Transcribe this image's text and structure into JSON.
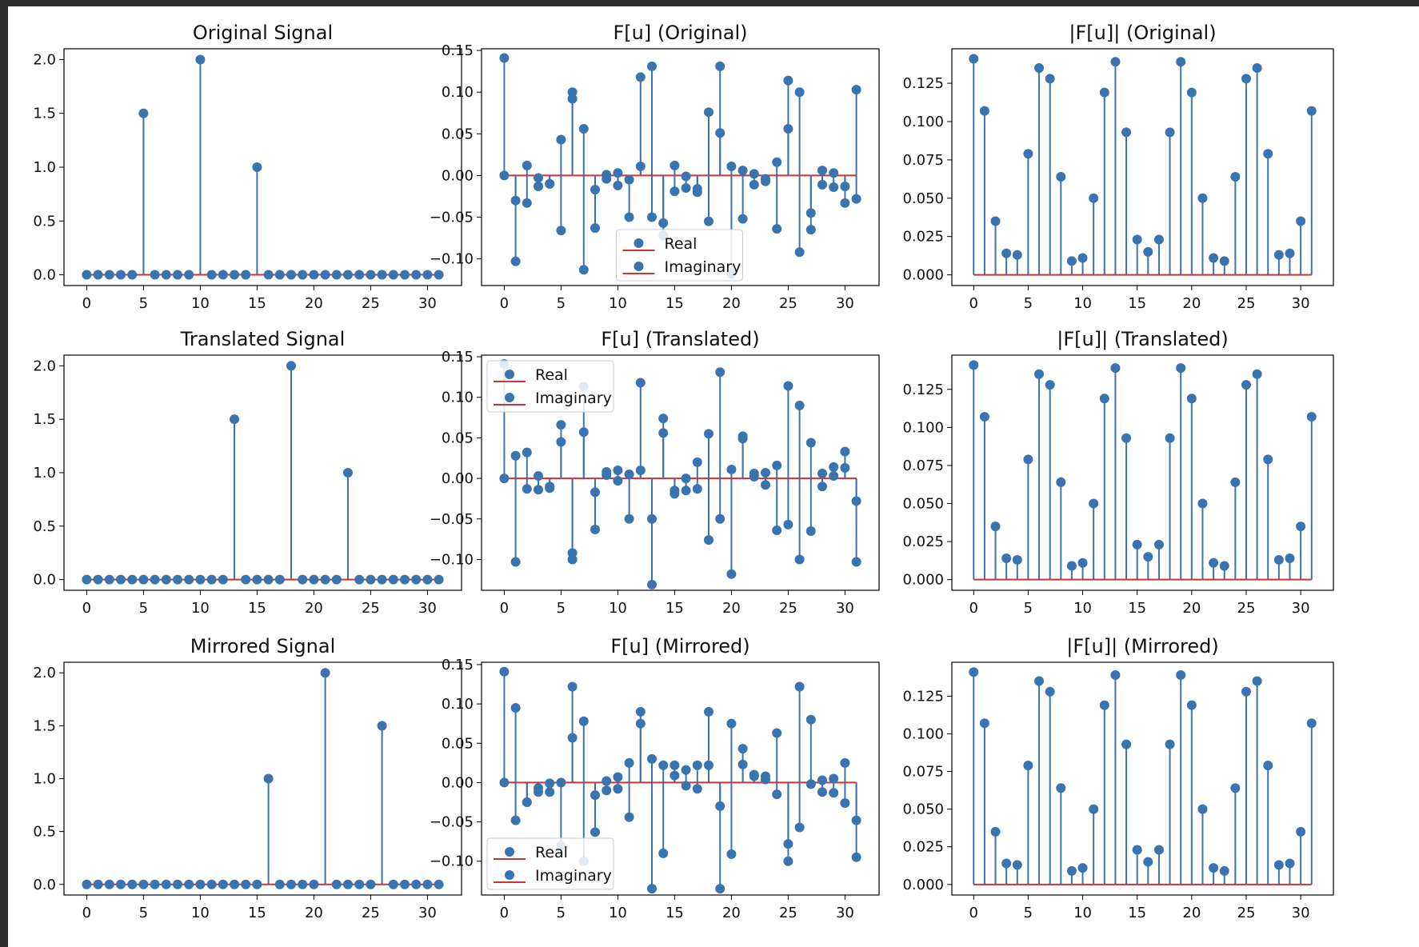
{
  "colors": {
    "stem": "#3a74b0",
    "baseline": "#cc3333",
    "marker": "#3a74b0",
    "axis": "#000000"
  },
  "chart_data": [
    {
      "type": "stem",
      "title": "Original Signal",
      "xlim": [
        -2,
        33
      ],
      "ylim": [
        -0.1,
        2.1
      ],
      "xticks": [
        0,
        5,
        10,
        15,
        20,
        25,
        30
      ],
      "xtick_labels": [
        "0",
        "5",
        "10",
        "15",
        "20",
        "25",
        "30"
      ],
      "yticks": [
        0,
        0.5,
        1,
        1.5,
        2
      ],
      "ytick_labels": [
        "0.0",
        "0.5",
        "1.0",
        "1.5",
        "2.0"
      ],
      "series": [
        {
          "values": [
            0,
            0,
            0,
            0,
            0,
            1.5,
            0,
            0,
            0,
            0,
            2.0,
            0,
            0,
            0,
            0,
            1.0,
            0,
            0,
            0,
            0,
            0,
            0,
            0,
            0,
            0,
            0,
            0,
            0,
            0,
            0,
            0,
            0
          ]
        }
      ]
    },
    {
      "type": "stem",
      "title": "F[u] (Original)",
      "xlim": [
        -2,
        33
      ],
      "ylim": [
        -0.132,
        0.152
      ],
      "xticks": [
        0,
        5,
        10,
        15,
        20,
        25,
        30
      ],
      "xtick_labels": [
        "0",
        "5",
        "10",
        "15",
        "20",
        "25",
        "30"
      ],
      "yticks": [
        -0.1,
        -0.05,
        0,
        0.05,
        0.1,
        0.15
      ],
      "ytick_labels": [
        "−0.10",
        "−0.05",
        "0.00",
        "0.05",
        "0.10",
        "0.15"
      ],
      "legend": "bottom-center",
      "series": [
        {
          "name": "Real",
          "values": [
            0.141,
            -0.03,
            -0.033,
            -0.013,
            -0.01,
            -0.066,
            0.092,
            -0.113,
            -0.017,
            -0.004,
            0.003,
            -0.005,
            0.118,
            0.131,
            -0.072,
            -0.019,
            -0.015,
            -0.02,
            0.076,
            0.051,
            0.011,
            -0.052,
            0.002,
            -0.007,
            -0.064,
            0.056,
            -0.092,
            -0.065,
            0.006,
            -0.014,
            -0.033,
            0.103
          ]
        },
        {
          "name": "Imaginary",
          "values": [
            0,
            -0.103,
            0.012,
            -0.003,
            -0.01,
            0.043,
            0.1,
            0.056,
            -0.063,
            0.001,
            -0.012,
            -0.05,
            0.011,
            -0.05,
            -0.057,
            0.012,
            -0.001,
            -0.016,
            -0.055,
            0.131,
            -0.118,
            0.006,
            -0.011,
            -0.004,
            0.016,
            0.114,
            0.1,
            -0.045,
            -0.011,
            0.003,
            -0.013,
            -0.028
          ]
        }
      ]
    },
    {
      "type": "stem",
      "title": "|F[u]| (Original)",
      "xlim": [
        -2,
        33
      ],
      "ylim": [
        -0.007,
        0.1475
      ],
      "xticks": [
        0,
        5,
        10,
        15,
        20,
        25,
        30
      ],
      "xtick_labels": [
        "0",
        "5",
        "10",
        "15",
        "20",
        "25",
        "30"
      ],
      "yticks": [
        0,
        0.025,
        0.05,
        0.075,
        0.1,
        0.125
      ],
      "ytick_labels": [
        "0.000",
        "0.025",
        "0.050",
        "0.075",
        "0.100",
        "0.125"
      ],
      "series": [
        {
          "values": [
            0.141,
            0.107,
            0.035,
            0.014,
            0.013,
            0.079,
            0.135,
            0.128,
            0.064,
            0.009,
            0.011,
            0.05,
            0.119,
            0.139,
            0.093,
            0.023,
            0.015,
            0.023,
            0.093,
            0.139,
            0.119,
            0.05,
            0.011,
            0.009,
            0.064,
            0.128,
            0.135,
            0.079,
            0.013,
            0.014,
            0.035,
            0.107
          ]
        }
      ]
    },
    {
      "type": "stem",
      "title": "Translated Signal",
      "xlim": [
        -2,
        33
      ],
      "ylim": [
        -0.1,
        2.1
      ],
      "xticks": [
        0,
        5,
        10,
        15,
        20,
        25,
        30
      ],
      "xtick_labels": [
        "0",
        "5",
        "10",
        "15",
        "20",
        "25",
        "30"
      ],
      "yticks": [
        0,
        0.5,
        1,
        1.5,
        2
      ],
      "ytick_labels": [
        "0.0",
        "0.5",
        "1.0",
        "1.5",
        "2.0"
      ],
      "series": [
        {
          "values": [
            0,
            0,
            0,
            0,
            0,
            0,
            0,
            0,
            0,
            0,
            0,
            0,
            0,
            1.5,
            0,
            0,
            0,
            0,
            2.0,
            0,
            0,
            0,
            0,
            1.0,
            0,
            0,
            0,
            0,
            0,
            0,
            0,
            0
          ]
        }
      ]
    },
    {
      "type": "stem",
      "title": "F[u] (Translated)",
      "xlim": [
        -2,
        33
      ],
      "ylim": [
        -0.138,
        0.152
      ],
      "xticks": [
        0,
        5,
        10,
        15,
        20,
        25,
        30
      ],
      "xtick_labels": [
        "0",
        "5",
        "10",
        "15",
        "20",
        "25",
        "30"
      ],
      "yticks": [
        -0.1,
        -0.05,
        0,
        0.05,
        0.1,
        0.15
      ],
      "ytick_labels": [
        "−0.10",
        "−0.05",
        "0.00",
        "0.05",
        "0.10",
        "0.15"
      ],
      "legend": "upper-left",
      "series": [
        {
          "name": "Real",
          "values": [
            0.141,
            0.028,
            -0.013,
            0.003,
            -0.01,
            0.066,
            -0.092,
            0.113,
            -0.017,
            0.004,
            0.01,
            0.005,
            0.118,
            -0.131,
            0.074,
            -0.015,
            0,
            0.02,
            -0.076,
            0.131,
            0.011,
            0.052,
            0.002,
            0.007,
            -0.064,
            0.114,
            -0.1,
            0.044,
            0.006,
            0.014,
            0.013,
            -0.103
          ]
        },
        {
          "name": "Imaginary",
          "values": [
            0,
            -0.103,
            0.032,
            -0.014,
            -0.012,
            0.045,
            -0.1,
            0.057,
            -0.063,
            0.008,
            -0.003,
            -0.05,
            0.01,
            -0.05,
            0.056,
            -0.019,
            -0.015,
            -0.013,
            0.055,
            -0.05,
            -0.118,
            0.049,
            0.006,
            -0.008,
            0.016,
            -0.057,
            0.09,
            -0.065,
            -0.01,
            0.003,
            0.033,
            -0.028
          ]
        }
      ]
    },
    {
      "type": "stem",
      "title": "|F[u]| (Translated)",
      "xlim": [
        -2,
        33
      ],
      "ylim": [
        -0.007,
        0.1475
      ],
      "xticks": [
        0,
        5,
        10,
        15,
        20,
        25,
        30
      ],
      "xtick_labels": [
        "0",
        "5",
        "10",
        "15",
        "20",
        "25",
        "30"
      ],
      "yticks": [
        0,
        0.025,
        0.05,
        0.075,
        0.1,
        0.125
      ],
      "ytick_labels": [
        "0.000",
        "0.025",
        "0.050",
        "0.075",
        "0.100",
        "0.125"
      ],
      "series": [
        {
          "values": [
            0.141,
            0.107,
            0.035,
            0.014,
            0.013,
            0.079,
            0.135,
            0.128,
            0.064,
            0.009,
            0.011,
            0.05,
            0.119,
            0.139,
            0.093,
            0.023,
            0.015,
            0.023,
            0.093,
            0.139,
            0.119,
            0.05,
            0.011,
            0.009,
            0.064,
            0.128,
            0.135,
            0.079,
            0.013,
            0.014,
            0.035,
            0.107
          ]
        }
      ]
    },
    {
      "type": "stem",
      "title": "Mirrored Signal",
      "xlim": [
        -2,
        33
      ],
      "ylim": [
        -0.1,
        2.1
      ],
      "xticks": [
        0,
        5,
        10,
        15,
        20,
        25,
        30
      ],
      "xtick_labels": [
        "0",
        "5",
        "10",
        "15",
        "20",
        "25",
        "30"
      ],
      "yticks": [
        0,
        0.5,
        1,
        1.5,
        2
      ],
      "ytick_labels": [
        "0.0",
        "0.5",
        "1.0",
        "1.5",
        "2.0"
      ],
      "series": [
        {
          "values": [
            0,
            0,
            0,
            0,
            0,
            0,
            0,
            0,
            0,
            0,
            0,
            0,
            0,
            0,
            0,
            0,
            1.0,
            0,
            0,
            0,
            0,
            2.0,
            0,
            0,
            0,
            0,
            1.5,
            0,
            0,
            0,
            0,
            0
          ]
        }
      ]
    },
    {
      "type": "stem",
      "title": "F[u] (Mirrored)",
      "xlim": [
        -2,
        33
      ],
      "ylim": [
        -0.143,
        0.153
      ],
      "xticks": [
        0,
        5,
        10,
        15,
        20,
        25,
        30
      ],
      "xtick_labels": [
        "0",
        "5",
        "10",
        "15",
        "20",
        "25",
        "30"
      ],
      "yticks": [
        -0.1,
        -0.05,
        0,
        0.05,
        0.1,
        0.15
      ],
      "ytick_labels": [
        "−0.10",
        "−0.05",
        "0.00",
        "0.05",
        "0.10",
        "0.15"
      ],
      "legend": "lower-left",
      "series": [
        {
          "name": "Real",
          "values": [
            0.141,
            0.095,
            -0.025,
            -0.012,
            -0.012,
            0,
            0.057,
            0.078,
            -0.063,
            0.002,
            0.007,
            -0.044,
            0.09,
            -0.135,
            -0.09,
            0.009,
            0.016,
            0.022,
            0.09,
            -0.135,
            0.075,
            0.023,
            0.01,
            0.008,
            0.063,
            -0.078,
            0.122,
            0.08,
            0.003,
            0.005,
            -0.026,
            -0.095
          ]
        },
        {
          "name": "Imaginary",
          "values": [
            0,
            -0.048,
            -0.025,
            -0.007,
            -0.001,
            -0.08,
            0.122,
            -0.1,
            -0.016,
            -0.01,
            -0.008,
            0.025,
            0.075,
            0.03,
            0.022,
            0.022,
            -0.004,
            -0.008,
            0.022,
            -0.03,
            -0.091,
            0.043,
            0.008,
            0.004,
            -0.015,
            -0.1,
            -0.057,
            -0.002,
            -0.012,
            -0.013,
            0.025,
            -0.048
          ]
        }
      ]
    },
    {
      "type": "stem",
      "title": "|F[u]| (Mirrored)",
      "xlim": [
        -2,
        33
      ],
      "ylim": [
        -0.007,
        0.1475
      ],
      "xticks": [
        0,
        5,
        10,
        15,
        20,
        25,
        30
      ],
      "xtick_labels": [
        "0",
        "5",
        "10",
        "15",
        "20",
        "25",
        "30"
      ],
      "yticks": [
        0,
        0.025,
        0.05,
        0.075,
        0.1,
        0.125
      ],
      "ytick_labels": [
        "0.000",
        "0.025",
        "0.050",
        "0.075",
        "0.100",
        "0.125"
      ],
      "series": [
        {
          "values": [
            0.141,
            0.107,
            0.035,
            0.014,
            0.013,
            0.079,
            0.135,
            0.128,
            0.064,
            0.009,
            0.011,
            0.05,
            0.119,
            0.139,
            0.093,
            0.023,
            0.015,
            0.023,
            0.093,
            0.139,
            0.119,
            0.05,
            0.011,
            0.009,
            0.064,
            0.128,
            0.135,
            0.079,
            0.013,
            0.014,
            0.035,
            0.107
          ]
        }
      ]
    }
  ]
}
